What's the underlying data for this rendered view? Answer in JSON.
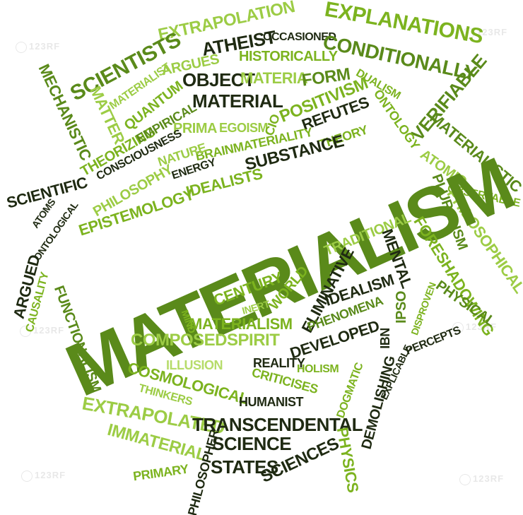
{
  "colors": {
    "dark": "#1f2a12",
    "mid": "#5a8a1a",
    "bright": "#7cb31f",
    "light": "#9ccc45",
    "pale": "#b6dc6a"
  },
  "watermark": "123RF",
  "main_word": "MATERIALISM",
  "words": {
    "extrapolation": "EXTRAPOLATION",
    "atheist": "ATHEIST",
    "occasioned": "OCCASIONED",
    "explanations": "EXPLANATIONS",
    "scientists": "SCIENTISTS",
    "argues": "ARGUES",
    "historically": "HISTORICALLY",
    "conditionally": "CONDITIONALLY",
    "mechanistic": "MECHANISTIC",
    "materialist": "MATERIALIST",
    "object": "OBJECT",
    "materia": "MATERIA",
    "form": "FORM",
    "dualism": "DUALISM",
    "matter": "MATTER",
    "quantum": "QUANTUM",
    "material": "MATERIAL",
    "positivism": "POSITIVISM",
    "verifiable": "VERIFIABLE",
    "ontology": "ONTOLOGY",
    "empirical": "EMPIRICAL",
    "prima": "PRIMA",
    "egoism": "EGOISM",
    "cio": "CIO",
    "refutes": "REFUTES",
    "theorizing": "THEORIZING",
    "consciousness": "CONSCIOUSNESS",
    "brainmateriality": "BRAINMATERIALITY",
    "theory": "THEORY",
    "materialistic": "MATERIALISTIC",
    "nature": "NATURE",
    "substance": "SUBSTANCE",
    "atomic": "ATOMIC",
    "energy": "ENERGY",
    "scientific": "SCIENTIFIC",
    "philosophy": "PHILOSOPHY",
    "idealists": "IDEALISTS",
    "observable": "OBSERVABLE",
    "atoms": "ATOMS",
    "epistemology": "EPISTEMOLOGY",
    "pluralism": "PLURALISM",
    "ontological": "ONTOLOGICAL",
    "philosophical": "PHILOSOPHICAL",
    "traditional": "TRADITIONAL",
    "mental": "MENTAL",
    "argued": "ARGUED",
    "foreshadowing": "FORESHADOWING",
    "causality": "CAUSALITY",
    "century": "CENTURY",
    "world": "WORLD",
    "eliminative": "ELIMINATIVE",
    "idealism": "IDEALISM",
    "ipso": "IPSO",
    "disproven": "DISPROVEN",
    "physical": "PHYSICAL",
    "inert": "INERT",
    "functionalism": "FUNCTIONALISM",
    "mind": "MIND",
    "phenomena": "PHENOMENA",
    "materialism_small": "MATERIALISM",
    "composedspirit": "COMPOSEDSPIRIT",
    "developed": "DEVELOPED",
    "ibn": "IBN",
    "percepts": "PERCEPTS",
    "reality": "REALITY",
    "holism": "HOLISM",
    "illusion": "ILLUSION",
    "cosmological": "COSMOLOGICAL",
    "criticises": "CRITICISES",
    "dogmatic": "DOGMATIC",
    "explicable": "EXPLICABLE",
    "demolishing": "DEMOLISHING",
    "thinkers": "THINKERS",
    "humanist": "HUMANIST",
    "extrapolated": "EXTRAPOLATED",
    "transcendental": "TRANSCENDENTAL",
    "immaterial": "IMMATERIAL",
    "science": "SCIENCE",
    "physics": "PHYSICS",
    "philosopher": "PHILOSOPHER",
    "primary": "PRIMARY",
    "states": "STATES",
    "sciences": "SCIENCES"
  }
}
